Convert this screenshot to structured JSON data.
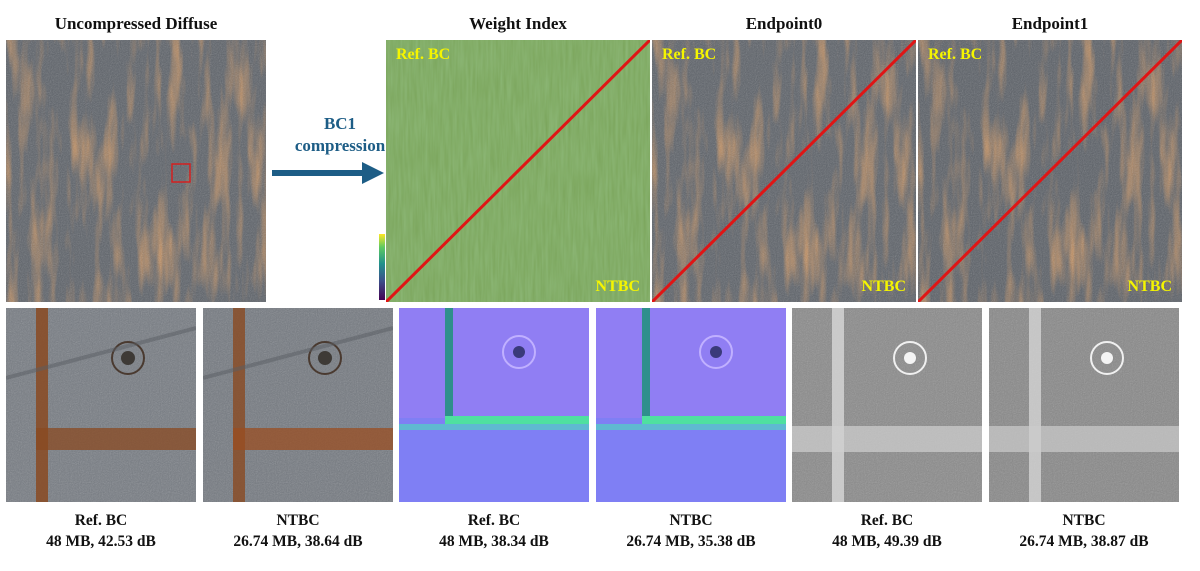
{
  "titles": {
    "uncompressed": "Uncompressed Diffuse",
    "weight_index": "Weight Index",
    "endpoint0": "Endpoint0",
    "endpoint1": "Endpoint1"
  },
  "arrow": {
    "line1": "BC1",
    "line2": "compression"
  },
  "overlays": {
    "ref": "Ref. BC",
    "ntbc": "NTBC"
  },
  "captions": [
    {
      "method": "Ref. BC",
      "stats": "48 MB, 42.53 dB"
    },
    {
      "method": "NTBC",
      "stats": "26.74 MB, 38.64 dB"
    },
    {
      "method": "Ref. BC",
      "stats": "48 MB, 38.34 dB"
    },
    {
      "method": "NTBC",
      "stats": "26.74 MB, 35.38 dB"
    },
    {
      "method": "Ref. BC",
      "stats": "48 MB, 49.39 dB"
    },
    {
      "method": "NTBC",
      "stats": "26.74 MB, 38.87 dB"
    }
  ],
  "colors": {
    "arrow": "#1d5d86",
    "diagonal": "#e01515",
    "overlay_text": "#f5f500",
    "rust": "#8a4a22",
    "metal": "#5c6168",
    "normal_map": "#7f7ff4",
    "weight_map": "#7aa45a"
  }
}
